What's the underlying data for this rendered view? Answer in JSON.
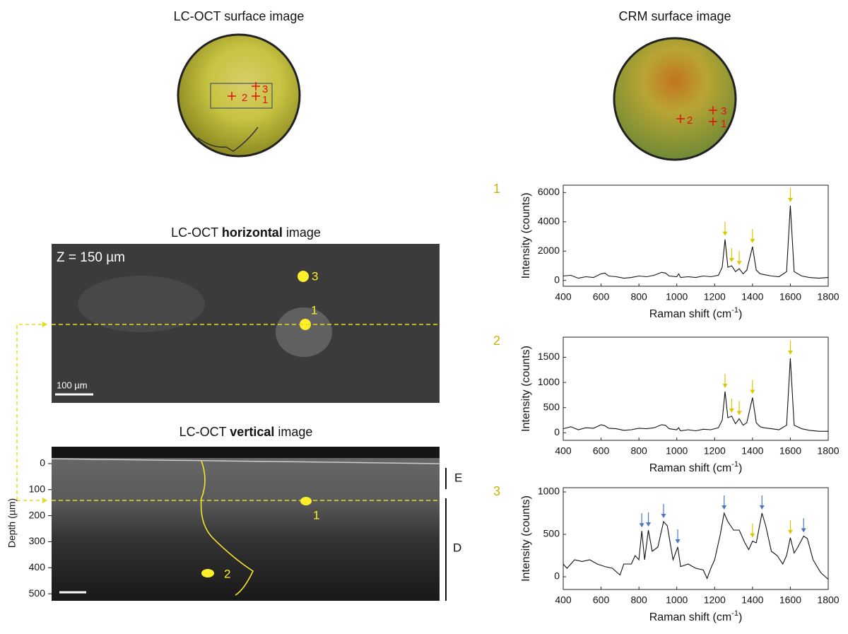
{
  "left": {
    "surface_title": "LC-OCT surface image",
    "surface_marks": [
      "2",
      "1",
      "3"
    ],
    "horizontal_title": {
      "pre": "LC-OCT ",
      "bold": "horizontal",
      "post": " image"
    },
    "horizontal_depth": "Z = 150 µm",
    "horizontal_scale": "100 µm",
    "horizontal_points": [
      "3",
      "1"
    ],
    "vertical_title": {
      "pre": "LC-OCT ",
      "bold": "vertical",
      "post": " image"
    },
    "vertical_points": [
      "1",
      "2"
    ],
    "layers": [
      "E",
      "D"
    ],
    "depth_axis": {
      "label": "Depth (µm)",
      "lim": [
        -65,
        527
      ],
      "ticks": [
        0,
        100,
        200,
        300,
        400,
        500
      ]
    }
  },
  "right": {
    "surface_title": "CRM surface image",
    "surface_marks": [
      "2",
      "3",
      "1"
    ]
  },
  "chart_data": [
    {
      "type": "line",
      "label": "1",
      "color": "#111111",
      "ylabel": "Intensity (counts)",
      "xlabel": {
        "pre": "Raman shift (cm",
        "sup": "-1",
        "post": ")"
      },
      "xlim": [
        400,
        1800
      ],
      "xticks": [
        400,
        600,
        800,
        1000,
        1200,
        1400,
        1600,
        1800
      ],
      "ylim": [
        -400,
        6500
      ],
      "yticks": [
        0,
        2000,
        4000,
        6000
      ],
      "x": [
        400,
        440,
        480,
        520,
        560,
        600,
        620,
        640,
        680,
        720,
        760,
        800,
        840,
        880,
        920,
        940,
        960,
        1000,
        1010,
        1020,
        1060,
        1100,
        1140,
        1180,
        1220,
        1240,
        1255,
        1270,
        1290,
        1310,
        1330,
        1350,
        1370,
        1400,
        1420,
        1440,
        1460,
        1500,
        1540,
        1580,
        1600,
        1620,
        1660,
        1700,
        1750,
        1800
      ],
      "values": [
        300,
        350,
        150,
        250,
        200,
        450,
        500,
        300,
        250,
        150,
        200,
        300,
        250,
        350,
        550,
        500,
        300,
        250,
        450,
        200,
        250,
        200,
        300,
        250,
        350,
        900,
        2800,
        900,
        1000,
        600,
        800,
        450,
        700,
        2300,
        700,
        450,
        400,
        300,
        250,
        600,
        5100,
        600,
        300,
        200,
        150,
        200
      ],
      "arrows": [
        {
          "x": 1255,
          "color": "#d9c800"
        },
        {
          "x": 1290,
          "color": "#d9c800"
        },
        {
          "x": 1330,
          "color": "#d9c800"
        },
        {
          "x": 1400,
          "color": "#d9c800"
        },
        {
          "x": 1600,
          "color": "#d9c800"
        }
      ]
    },
    {
      "type": "line",
      "label": "2",
      "color": "#111111",
      "ylabel": "Intensity (counts)",
      "xlabel": {
        "pre": "Raman shift (cm",
        "sup": "-1",
        "post": ")"
      },
      "xlim": [
        400,
        1800
      ],
      "xticks": [
        400,
        600,
        800,
        1000,
        1200,
        1400,
        1600,
        1800
      ],
      "ylim": [
        -150,
        1900
      ],
      "yticks": [
        0,
        500,
        1000,
        1500
      ],
      "x": [
        400,
        440,
        480,
        520,
        560,
        600,
        620,
        640,
        680,
        720,
        760,
        800,
        840,
        880,
        920,
        940,
        960,
        1000,
        1010,
        1020,
        1060,
        1100,
        1140,
        1180,
        1220,
        1240,
        1255,
        1270,
        1290,
        1310,
        1330,
        1350,
        1370,
        1400,
        1420,
        1440,
        1460,
        1500,
        1540,
        1580,
        1600,
        1620,
        1660,
        1700,
        1750,
        1800
      ],
      "values": [
        80,
        120,
        60,
        100,
        90,
        160,
        140,
        90,
        80,
        50,
        60,
        90,
        80,
        100,
        160,
        150,
        80,
        60,
        100,
        40,
        60,
        40,
        70,
        60,
        100,
        250,
        820,
        300,
        330,
        180,
        280,
        150,
        200,
        700,
        200,
        120,
        100,
        80,
        60,
        150,
        1480,
        150,
        80,
        50,
        30,
        30
      ],
      "arrows": [
        {
          "x": 1255,
          "color": "#d9c800"
        },
        {
          "x": 1290,
          "color": "#d9c800"
        },
        {
          "x": 1330,
          "color": "#d9c800"
        },
        {
          "x": 1400,
          "color": "#d9c800"
        },
        {
          "x": 1600,
          "color": "#d9c800"
        }
      ]
    },
    {
      "type": "line",
      "label": "3",
      "color": "#111111",
      "ylabel": "Intensity (counts)",
      "xlabel": {
        "pre": "Raman shift (cm",
        "sup": "-1",
        "post": ")"
      },
      "xlim": [
        400,
        1800
      ],
      "xticks": [
        400,
        600,
        800,
        1000,
        1200,
        1400,
        1600,
        1800
      ],
      "ylim": [
        -150,
        1050
      ],
      "yticks": [
        0,
        500,
        1000
      ],
      "x": [
        400,
        420,
        460,
        500,
        540,
        580,
        620,
        660,
        700,
        720,
        760,
        780,
        800,
        815,
        830,
        850,
        870,
        900,
        930,
        950,
        980,
        1005,
        1020,
        1060,
        1100,
        1140,
        1160,
        1180,
        1200,
        1230,
        1250,
        1270,
        1300,
        1330,
        1360,
        1380,
        1400,
        1420,
        1450,
        1470,
        1500,
        1530,
        1560,
        1580,
        1600,
        1620,
        1640,
        1670,
        1690,
        1720,
        1760,
        1800
      ],
      "values": [
        150,
        100,
        200,
        180,
        200,
        150,
        120,
        100,
        20,
        150,
        150,
        250,
        200,
        540,
        200,
        550,
        300,
        350,
        650,
        600,
        200,
        350,
        120,
        150,
        100,
        80,
        -20,
        100,
        200,
        500,
        750,
        650,
        550,
        550,
        400,
        320,
        420,
        400,
        750,
        600,
        300,
        250,
        150,
        250,
        460,
        280,
        350,
        480,
        450,
        200,
        50,
        -30
      ],
      "arrows": [
        {
          "x": 815,
          "color": "#4a78c0"
        },
        {
          "x": 850,
          "color": "#4a78c0"
        },
        {
          "x": 930,
          "color": "#4a78c0"
        },
        {
          "x": 1005,
          "color": "#4a78c0"
        },
        {
          "x": 1250,
          "color": "#4a78c0"
        },
        {
          "x": 1400,
          "color": "#d9c800"
        },
        {
          "x": 1450,
          "color": "#4a78c0"
        },
        {
          "x": 1600,
          "color": "#d9c800"
        },
        {
          "x": 1670,
          "color": "#4a78c0"
        }
      ]
    }
  ]
}
